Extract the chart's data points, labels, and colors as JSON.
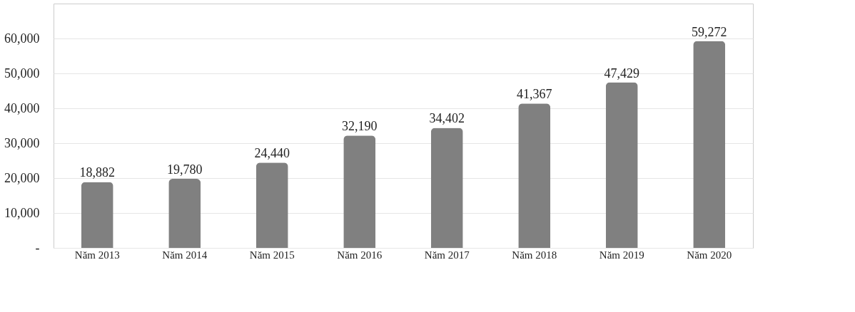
{
  "chart_data": {
    "type": "bar",
    "categories": [
      "Năm 2013",
      "Năm 2014",
      "Năm 2015",
      "Năm 2016",
      "Năm 2017",
      "Năm 2018",
      "Năm 2019",
      "Năm 2020"
    ],
    "values": [
      18882,
      19780,
      24440,
      32190,
      34402,
      41367,
      47429,
      59272
    ],
    "color": "#808080",
    "ylim": [
      0,
      70000
    ],
    "yticks": [
      {
        "value": 0,
        "label": "-"
      },
      {
        "value": 10000,
        "label": "10,000"
      },
      {
        "value": 20000,
        "label": "20,000"
      },
      {
        "value": 30000,
        "label": "30,000"
      },
      {
        "value": 40000,
        "label": "40,000"
      },
      {
        "value": 50000,
        "label": "50,000"
      },
      {
        "value": 60000,
        "label": "60,000"
      }
    ],
    "grid": "y",
    "value_labels": [
      "18,882",
      "19,780",
      "24,440",
      "32,190",
      "34,402",
      "41,367",
      "47,429",
      "59,272"
    ]
  }
}
